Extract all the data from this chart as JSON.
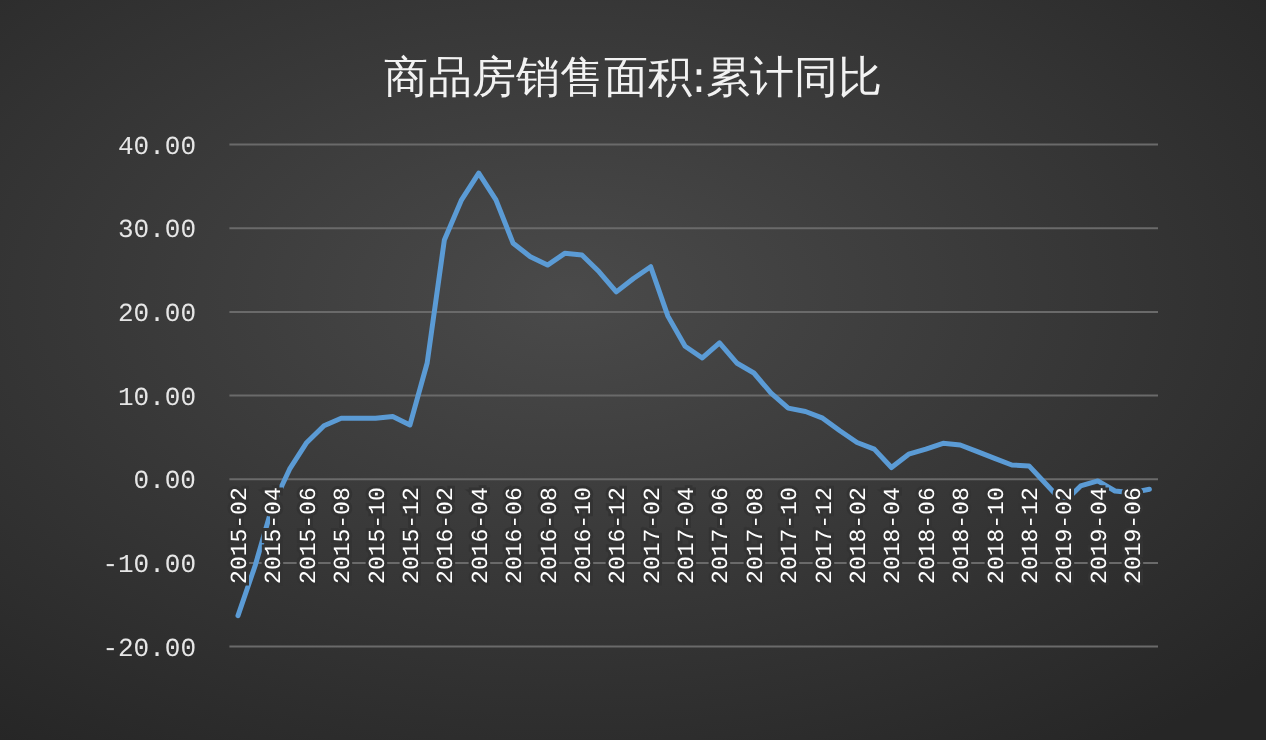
{
  "chart_data": {
    "type": "line",
    "title": "商品房销售面积:累计同比",
    "categories": [
      "2015-02",
      null,
      "2015-04",
      null,
      "2015-06",
      null,
      "2015-08",
      null,
      "2015-10",
      null,
      "2015-12",
      null,
      "2016-02",
      null,
      "2016-04",
      null,
      "2016-06",
      null,
      "2016-08",
      null,
      "2016-10",
      null,
      "2016-12",
      null,
      "2017-02",
      null,
      "2017-04",
      null,
      "2017-06",
      null,
      "2017-08",
      null,
      "2017-10",
      null,
      "2017-12",
      null,
      "2018-02",
      null,
      "2018-04",
      null,
      "2018-06",
      null,
      "2018-08",
      null,
      "2018-10",
      null,
      "2018-12",
      null,
      "2019-02",
      null,
      "2019-04",
      null,
      "2019-06",
      null
    ],
    "values": [
      -16.3,
      -10.3,
      -3.2,
      1.2,
      4.4,
      6.4,
      7.3,
      7.3,
      7.3,
      7.5,
      6.5,
      13.9,
      28.6,
      33.4,
      36.6,
      33.4,
      28.2,
      26.6,
      25.6,
      27.0,
      26.8,
      24.8,
      22.4,
      24.0,
      25.4,
      19.5,
      15.9,
      14.5,
      16.3,
      13.9,
      12.7,
      10.3,
      8.5,
      8.1,
      7.3,
      5.8,
      4.4,
      3.6,
      1.4,
      3.0,
      3.6,
      4.3,
      4.1,
      3.3,
      2.5,
      1.7,
      1.6,
      -0.6,
      -2.8,
      -0.8,
      -0.2,
      -1.4,
      -1.6,
      -1.2
    ],
    "color": "#5b9bd5",
    "ylim": [
      -20,
      40
    ],
    "yticks": [
      {
        "value": -20,
        "label": "-20.00"
      },
      {
        "value": -10,
        "label": "-10.00"
      },
      {
        "value": 0,
        "label": "0.00"
      },
      {
        "value": 10,
        "label": "10.00"
      },
      {
        "value": 20,
        "label": "20.00"
      },
      {
        "value": 30,
        "label": "30.00"
      },
      {
        "value": 40,
        "label": "40.00"
      }
    ],
    "grid": "y"
  }
}
